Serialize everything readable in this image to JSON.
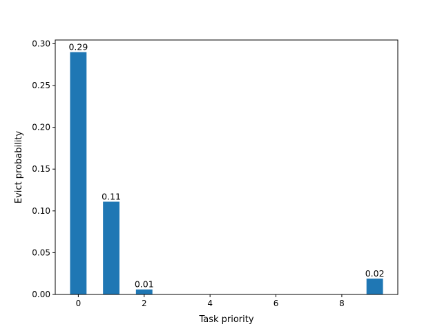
{
  "chart_data": {
    "type": "bar",
    "x": [
      0,
      1,
      2,
      9
    ],
    "values": [
      0.29,
      0.111,
      0.006,
      0.019
    ],
    "data_labels": [
      "0.29",
      "0.11",
      "0.01",
      "0.02"
    ],
    "bar_width": 0.5,
    "xlabel": "Task priority",
    "ylabel": "Evict probability",
    "xlim": [
      -0.7,
      9.7
    ],
    "ylim": [
      0,
      0.3045
    ],
    "xticks": [
      0,
      2,
      4,
      6,
      8
    ],
    "xtick_labels": [
      "0",
      "2",
      "4",
      "6",
      "8"
    ],
    "yticks": [
      0,
      0.05,
      0.1,
      0.15,
      0.2,
      0.25,
      0.3
    ],
    "ytick_labels": [
      "0.00",
      "0.05",
      "0.10",
      "0.15",
      "0.20",
      "0.25",
      "0.30"
    ],
    "grid": false,
    "bar_color": "#1f77b4"
  }
}
